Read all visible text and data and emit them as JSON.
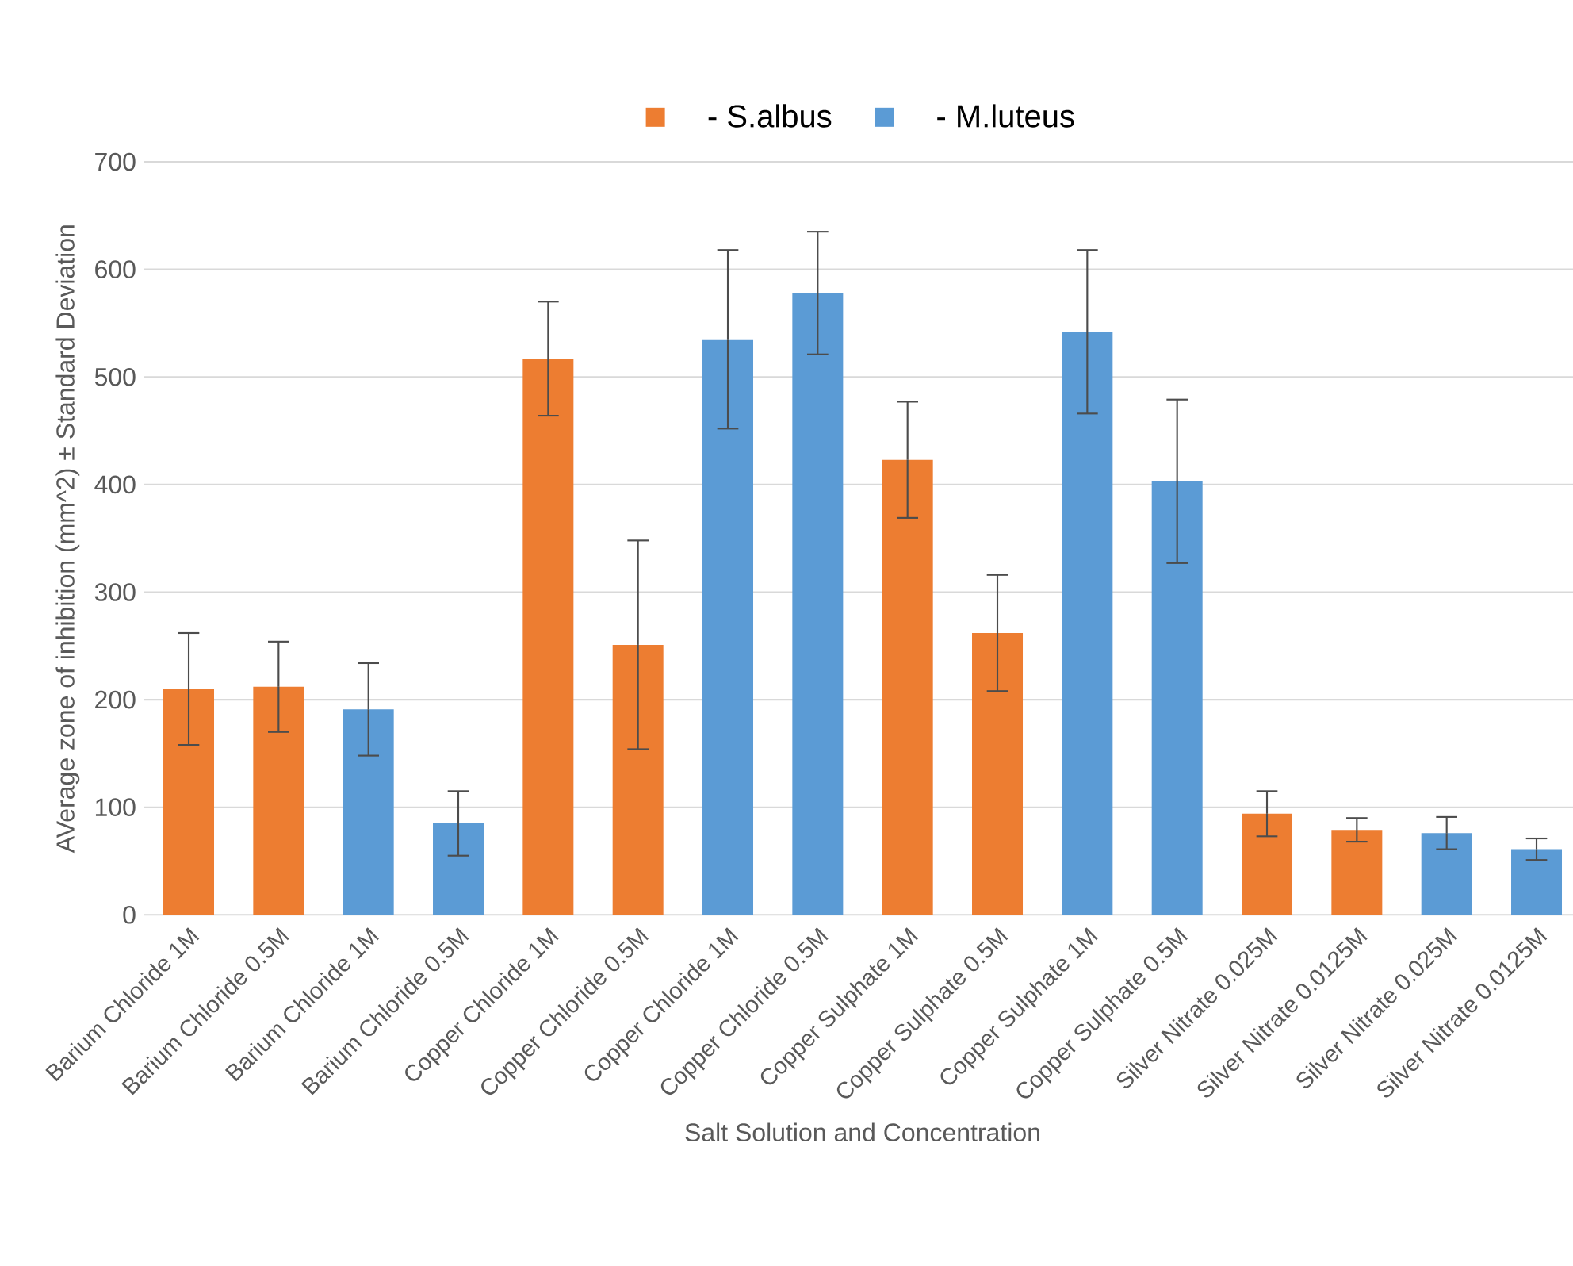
{
  "chart_data": {
    "type": "bar",
    "xlabel": "Salt Solution and Concentration",
    "ylabel": "AVerage zone of inhibition (mm^2) ± Standard Deviation",
    "categories": [
      "Barium Chloride 1M",
      "Barium Chloride 0.5M",
      "Barium Chloride 1M",
      "Barium Chloride 0.5M",
      "Copper Chloride 1M",
      "Copper Chloride 0.5M",
      "Copper Chloride 1M",
      "Copper Chloride 0.5M",
      "Copper Sulphate 1M",
      "Copper Sulphate 0.5M",
      "Copper Sulphate 1M",
      "Copper Sulphate 0.5M",
      "Silver Nitrate 0.025M",
      "Silver Nitrate 0.0125M",
      "Silver Nitrate 0.025M",
      "Silver Nitrate 0.0125M"
    ],
    "series": [
      {
        "name": "- S.albus",
        "color": "#ed7d31",
        "values": [
          210,
          212,
          null,
          null,
          517,
          251,
          null,
          null,
          423,
          262,
          null,
          null,
          94,
          79,
          null,
          null
        ],
        "errors": [
          52,
          42,
          null,
          null,
          53,
          97,
          null,
          null,
          54,
          54,
          null,
          null,
          21,
          11,
          null,
          null
        ]
      },
      {
        "name": "- M.luteus",
        "color": "#5b9bd5",
        "values": [
          null,
          null,
          191,
          85,
          null,
          null,
          535,
          578,
          null,
          null,
          542,
          403,
          null,
          null,
          76,
          61
        ],
        "errors": [
          null,
          null,
          43,
          30,
          null,
          null,
          83,
          57,
          null,
          null,
          76,
          76,
          null,
          null,
          15,
          10
        ]
      }
    ],
    "ylim": [
      0,
      700
    ],
    "yticks": [
      0,
      100,
      200,
      300,
      400,
      500,
      600,
      700
    ],
    "grid": "y",
    "legend": "top"
  }
}
